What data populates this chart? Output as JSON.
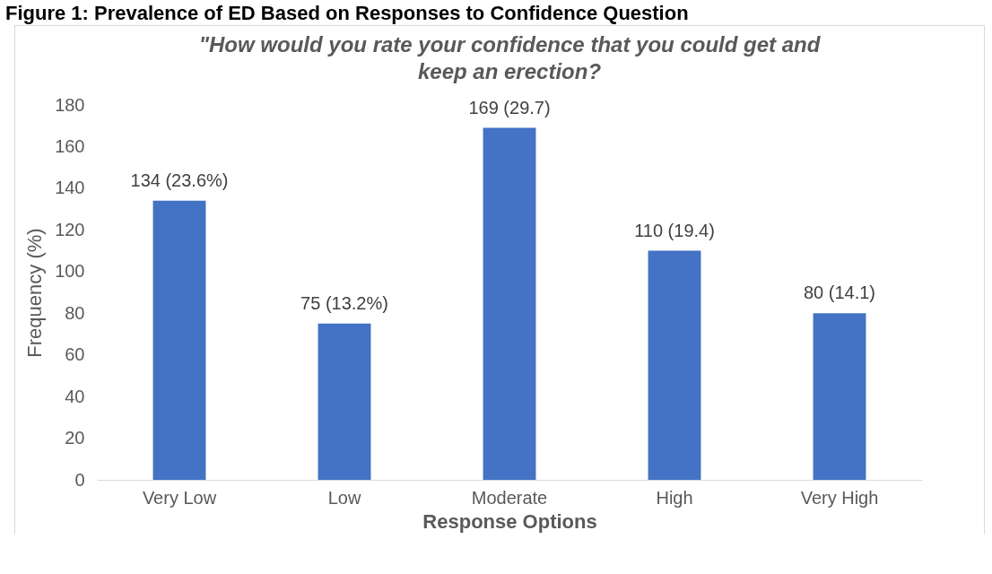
{
  "chart_data": {
    "type": "bar",
    "title": "\"How would you rate your confidence that you could get and\nkeep an erection?",
    "annotations": [
      "Figure 1: Prevalence of ED Based on Responses to Confidence Question"
    ],
    "xlabel": "Response Options",
    "ylabel": "Frequency (%)",
    "categories": [
      "Very Low",
      "Low",
      "Moderate",
      "High",
      "Very High"
    ],
    "values": [
      134,
      75,
      169,
      110,
      80
    ],
    "value_labels": [
      "134 (23.6%)",
      "75 (13.2%)",
      "169 (29.7)",
      "110 (19.4)",
      "80 (14.1)"
    ],
    "color": "#4472c4",
    "ylim": [
      0,
      180
    ],
    "yticks": [
      0,
      20,
      40,
      60,
      80,
      100,
      120,
      140,
      160,
      180
    ],
    "grid": false
  }
}
